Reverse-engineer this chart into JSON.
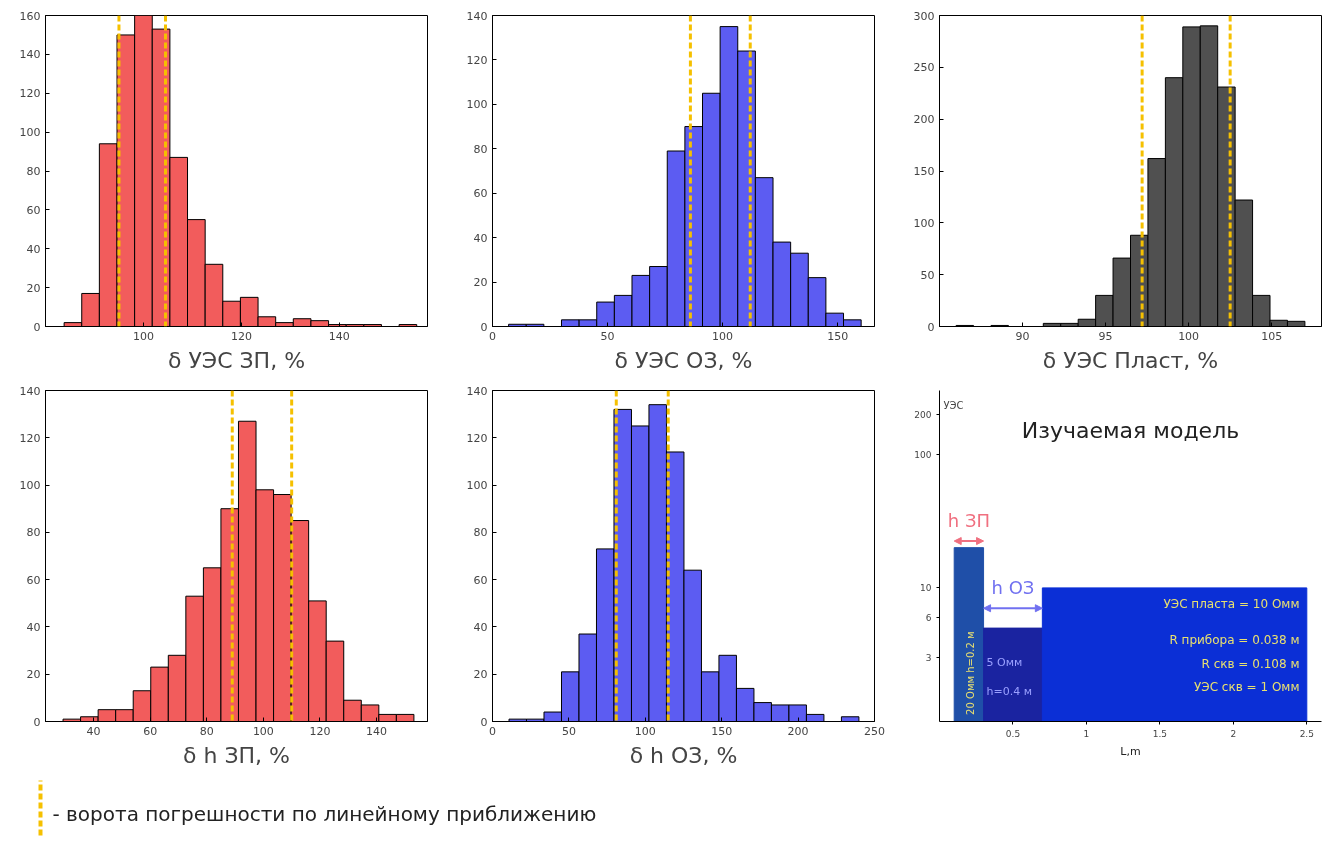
{
  "chart_data": [
    {
      "type": "histogram",
      "xlabel": "δ УЭС ЗП, %",
      "color": "#f25c5c",
      "bins": [
        83.8,
        87.4,
        91.0,
        94.6,
        98.2,
        101.8,
        105.4,
        109.0,
        112.6,
        116.2,
        119.8,
        123.4,
        127.0,
        130.6,
        134.2,
        137.8,
        141.4,
        145.0,
        148.6,
        152.2,
        155.8
      ],
      "values": [
        2,
        17,
        94,
        150,
        160,
        153,
        87,
        55,
        32,
        13,
        15,
        5,
        2,
        4,
        3,
        1,
        1,
        1,
        0,
        1
      ],
      "xlim": [
        80,
        158
      ],
      "xticks": [
        100,
        120,
        140
      ],
      "ylim": [
        0,
        160
      ],
      "yticks": [
        0,
        20,
        40,
        60,
        80,
        100,
        120,
        140,
        160
      ],
      "grid": false,
      "ref_lines": [
        {
          "axis": "x",
          "value": 95,
          "color": "#f5c000",
          "line_style": "dashed"
        },
        {
          "axis": "x",
          "value": 104.5,
          "color": "#f5c000",
          "line_style": "dashed"
        }
      ]
    },
    {
      "type": "histogram",
      "xlabel": "δ УЭС ОЗ, %",
      "color": "#5c5cf2",
      "bins": [
        7.0,
        14.66,
        22.32,
        29.98,
        37.64,
        45.3,
        52.96,
        60.62,
        68.28,
        75.94,
        83.6,
        91.26,
        98.92,
        106.58,
        114.24,
        121.9,
        129.56,
        137.22,
        144.88,
        152.54,
        160.2
      ],
      "values": [
        1,
        1,
        0,
        3,
        3,
        11,
        14,
        23,
        27,
        79,
        90,
        105,
        135,
        124,
        67,
        38,
        33,
        22,
        6,
        3
      ],
      "xlim": [
        0,
        166
      ],
      "xticks": [
        0,
        50,
        100,
        150
      ],
      "ylim": [
        0,
        140
      ],
      "yticks": [
        0,
        20,
        40,
        60,
        80,
        100,
        120,
        140
      ],
      "grid": false,
      "ref_lines": [
        {
          "axis": "x",
          "value": 86,
          "color": "#f5c000",
          "line_style": "dashed"
        },
        {
          "axis": "x",
          "value": 112,
          "color": "#f5c000",
          "line_style": "dashed"
        }
      ]
    },
    {
      "type": "histogram",
      "xlabel": "δ УЭС Пласт, %",
      "color": "#505050",
      "bins": [
        86.0,
        87.05,
        88.1,
        89.15,
        90.2,
        91.25,
        92.3,
        93.35,
        94.4,
        95.45,
        96.5,
        97.55,
        98.6,
        99.65,
        100.7,
        101.75,
        102.8,
        103.85,
        104.9,
        105.95,
        107.0
      ],
      "values": [
        1,
        0,
        1,
        0,
        0,
        3,
        3,
        7,
        30,
        66,
        88,
        162,
        240,
        289,
        290,
        231,
        122,
        30,
        6,
        5
      ],
      "xlim": [
        85,
        108
      ],
      "xticks": [
        90,
        95,
        100,
        105
      ],
      "ylim": [
        0,
        300
      ],
      "yticks": [
        0,
        50,
        100,
        150,
        200,
        250,
        300
      ],
      "grid": false,
      "ref_lines": [
        {
          "axis": "x",
          "value": 97.2,
          "color": "#f5c000",
          "line_style": "dashed"
        },
        {
          "axis": "x",
          "value": 102.5,
          "color": "#f5c000",
          "line_style": "dashed"
        }
      ]
    },
    {
      "type": "histogram",
      "xlabel": "δ h ЗП, %",
      "color": "#f25c5c",
      "bins": [
        29.2,
        35.4,
        41.6,
        47.8,
        54.0,
        60.2,
        66.4,
        72.6,
        78.8,
        85.0,
        91.2,
        97.4,
        103.6,
        109.8,
        116.0,
        122.2,
        128.4,
        134.6,
        140.8,
        147.0,
        153.2
      ],
      "values": [
        1,
        2,
        5,
        5,
        13,
        23,
        28,
        53,
        65,
        90,
        127,
        98,
        96,
        85,
        51,
        34,
        9,
        7,
        3,
        3
      ],
      "xlim": [
        23,
        158
      ],
      "xticks": [
        40,
        60,
        80,
        100,
        120,
        140
      ],
      "ylim": [
        0,
        140
      ],
      "yticks": [
        0,
        20,
        40,
        60,
        80,
        100,
        120,
        140
      ],
      "grid": false,
      "ref_lines": [
        {
          "axis": "x",
          "value": 89,
          "color": "#f5c000",
          "line_style": "dashed"
        },
        {
          "axis": "x",
          "value": 110,
          "color": "#f5c000",
          "line_style": "dashed"
        }
      ]
    },
    {
      "type": "histogram",
      "xlabel": "δ h ОЗ, %",
      "color": "#5c5cf2",
      "bins": [
        10.8,
        22.25,
        33.7,
        45.15,
        56.6,
        68.05,
        79.5,
        90.95,
        102.4,
        113.85,
        125.3,
        136.75,
        148.2,
        159.65,
        171.1,
        182.55,
        194.0,
        205.45,
        216.9,
        228.35,
        239.8
      ],
      "values": [
        1,
        1,
        4,
        21,
        37,
        73,
        132,
        125,
        134,
        114,
        64,
        21,
        28,
        14,
        8,
        7,
        7,
        3,
        0,
        2
      ],
      "xlim": [
        0,
        250
      ],
      "xticks": [
        0,
        50,
        100,
        150,
        200,
        250
      ],
      "ylim": [
        0,
        140
      ],
      "yticks": [
        0,
        20,
        40,
        60,
        80,
        100,
        120,
        140
      ],
      "grid": false,
      "ref_lines": [
        {
          "axis": "x",
          "value": 81,
          "color": "#f5c000",
          "line_style": "dashed"
        },
        {
          "axis": "x",
          "value": 115,
          "color": "#f5c000",
          "line_style": "dashed"
        }
      ]
    },
    {
      "type": "histogram",
      "title": "Изучаемая модель",
      "xlabel": "L,m",
      "ylabel": "УЭС",
      "bins": [
        0.1,
        0.3,
        0.7,
        2.5
      ],
      "values": [
        20,
        5,
        10
      ],
      "colors": [
        "#1f4fa8",
        "#1a23a0",
        "#0b2fd6"
      ],
      "xlim": [
        0,
        2.6
      ],
      "xticks": [
        0.5,
        1,
        1.5,
        2,
        2.5
      ],
      "ylim": [
        1,
        300
      ],
      "yticks": [
        3,
        6,
        10,
        100,
        200
      ],
      "log": true,
      "grid": false,
      "annotations": [
        "h ЗП",
        "h ОЗ",
        "20 Омм h=0.2 м",
        "5 Омм",
        "h=0.4 м",
        "УЭС пласта = 10 Омм",
        "R прибора = 0.038 м",
        "R скв = 0.108 м",
        "УЭС скв = 1 Омм",
        "- ворота погрешности по линейному приближению"
      ]
    }
  ]
}
